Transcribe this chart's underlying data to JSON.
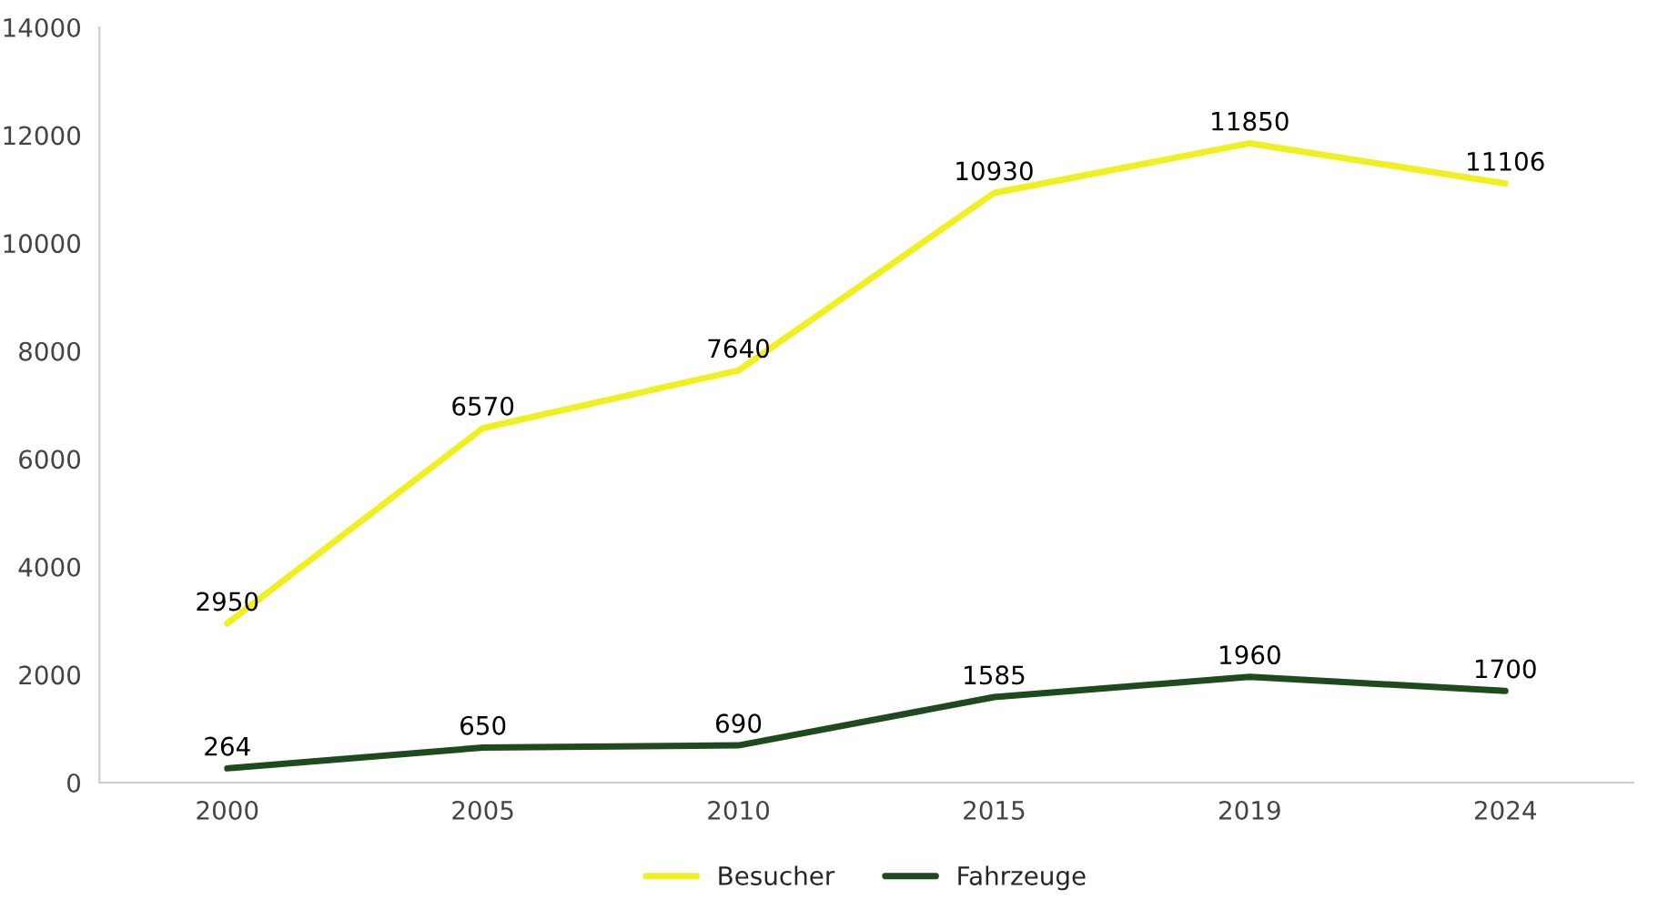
{
  "chart_data": {
    "type": "line",
    "categories": [
      "2000",
      "2005",
      "2010",
      "2015",
      "2019",
      "2024"
    ],
    "series": [
      {
        "name": "Besucher",
        "color": "#f0f020",
        "values": [
          2950,
          6570,
          7640,
          10930,
          11850,
          11106
        ]
      },
      {
        "name": "Fahrzeuge",
        "color": "#1e4a1e",
        "values": [
          264,
          650,
          690,
          1585,
          1960,
          1700
        ]
      }
    ],
    "ylim": [
      0,
      14000
    ],
    "yticks": [
      0,
      2000,
      4000,
      6000,
      8000,
      10000,
      12000,
      14000
    ],
    "data_labels": true,
    "legend": "bottom",
    "grid": false,
    "marker": "none",
    "line_style": "solid"
  }
}
